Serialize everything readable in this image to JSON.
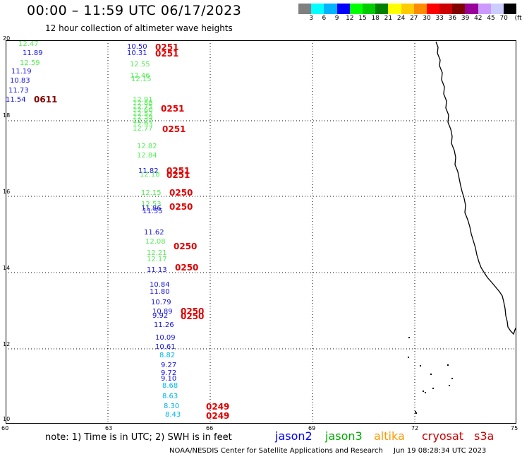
{
  "header": {
    "title": "00:00 – 11:59 UTC 06/17/2023",
    "subtitle": "12 hour collection of altimeter wave heights"
  },
  "legend": {
    "colors": [
      "#808080",
      "#00ffff",
      "#00b4ff",
      "#0000ff",
      "#00ff00",
      "#00cc00",
      "#008000",
      "#ffff00",
      "#ffcc00",
      "#ff8c00",
      "#ff0000",
      "#cc0000",
      "#800000",
      "#990099",
      "#cc99ff",
      "#ccccff",
      "#000000"
    ],
    "labels": [
      "3",
      "6",
      "9",
      "12",
      "15",
      "18",
      "21",
      "24",
      "27",
      "30",
      "33",
      "36",
      "39",
      "42",
      "45",
      "70",
      "(ft)"
    ]
  },
  "axes": {
    "y_labels": [
      "20",
      "18",
      "16",
      "14",
      "12",
      "10"
    ],
    "x_labels": [
      "60",
      "63",
      "66",
      "69",
      "72",
      "75"
    ]
  },
  "satellites": {
    "jason2": {
      "label": "jason2",
      "color": "#0000ff"
    },
    "jason3": {
      "label": "jason3",
      "color": "#00aa00"
    },
    "altika": {
      "label": "altika",
      "color": "#ff9900"
    },
    "cryosat": {
      "label": "cryosat",
      "color": "#cc0000"
    },
    "s3a": {
      "label": "s3a",
      "color": "#cc0000"
    }
  },
  "points": [
    {
      "v": "12.47",
      "c": "#55ee55"
    },
    {
      "v": "11.89",
      "c": "#1515e0"
    },
    {
      "v": "12.59",
      "c": "#55ee55"
    },
    {
      "v": "11.19",
      "c": "#1515e0"
    },
    {
      "v": "10.83",
      "c": "#1515e0"
    },
    {
      "v": "11.73",
      "c": "#1515e0"
    },
    {
      "v": "11.54",
      "c": "#1515e0"
    },
    {
      "v": "10.50",
      "c": "#1515e0"
    },
    {
      "v": "10.31",
      "c": "#1515e0"
    },
    {
      "v": "12.55",
      "c": "#55ee55"
    },
    {
      "v": "12.46",
      "c": "#55ee55"
    },
    {
      "v": "12.15",
      "c": "#55ee55"
    },
    {
      "v": "12.91",
      "c": "#55ee55"
    },
    {
      "v": "12.88",
      "c": "#55ee55"
    },
    {
      "v": "12.75",
      "c": "#55ee55"
    },
    {
      "v": "12.60",
      "c": "#55ee55"
    },
    {
      "v": "12.52",
      "c": "#55ee55"
    },
    {
      "v": "12.39",
      "c": "#55ee55"
    },
    {
      "v": "12.27",
      "c": "#55ee55"
    },
    {
      "v": "12.93",
      "c": "#55ee55"
    },
    {
      "v": "12.77",
      "c": "#55ee55"
    },
    {
      "v": "12.82",
      "c": "#55ee55"
    },
    {
      "v": "12.84",
      "c": "#55ee55"
    },
    {
      "v": "11.82",
      "c": "#1515e0"
    },
    {
      "v": "12.18",
      "c": "#55ee55"
    },
    {
      "v": "12.15",
      "c": "#55ee55"
    },
    {
      "v": "12.53",
      "c": "#55ee55"
    },
    {
      "v": "11.86",
      "c": "#1515e0"
    },
    {
      "v": "11.55",
      "c": "#1515e0"
    },
    {
      "v": "11.62",
      "c": "#1515e0"
    },
    {
      "v": "12.08",
      "c": "#55ee55"
    },
    {
      "v": "12.21",
      "c": "#55ee55"
    },
    {
      "v": "12.17",
      "c": "#55ee55"
    },
    {
      "v": "11.13",
      "c": "#1515e0"
    },
    {
      "v": "10.84",
      "c": "#1515e0"
    },
    {
      "v": "11.80",
      "c": "#1515e0"
    },
    {
      "v": "10.79",
      "c": "#1515e0"
    },
    {
      "v": "10.89",
      "c": "#1515e0"
    },
    {
      "v": "9.92",
      "c": "#1515e0"
    },
    {
      "v": "11.26",
      "c": "#1515e0"
    },
    {
      "v": "10.09",
      "c": "#1515e0"
    },
    {
      "v": "10.61",
      "c": "#1515e0"
    },
    {
      "v": "8.82",
      "c": "#00b4e6"
    },
    {
      "v": "9.27",
      "c": "#1515e0"
    },
    {
      "v": "9.72",
      "c": "#1515e0"
    },
    {
      "v": "9.10",
      "c": "#1515e0"
    },
    {
      "v": "8.68",
      "c": "#00b4e6"
    },
    {
      "v": "8.63",
      "c": "#00b4e6"
    },
    {
      "v": "8.30",
      "c": "#00b4e6"
    },
    {
      "v": "8.43",
      "c": "#00b4e6"
    }
  ],
  "revs": [
    {
      "v": "0611",
      "c": "#800000"
    },
    {
      "v": "0251",
      "c": "#e00000"
    },
    {
      "v": "0251",
      "c": "#e00000"
    },
    {
      "v": "0251",
      "c": "#e00000"
    },
    {
      "v": "0251",
      "c": "#e00000"
    },
    {
      "v": "0251",
      "c": "#e00000"
    },
    {
      "v": "0251",
      "c": "#e00000"
    },
    {
      "v": "0250",
      "c": "#e00000"
    },
    {
      "v": "0250",
      "c": "#e00000"
    },
    {
      "v": "0250",
      "c": "#e00000"
    },
    {
      "v": "0250",
      "c": "#e00000"
    },
    {
      "v": "0250",
      "c": "#e00000"
    },
    {
      "v": "0250",
      "c": "#e00000"
    },
    {
      "v": "0249",
      "c": "#e00000"
    },
    {
      "v": "0249",
      "c": "#e00000"
    }
  ],
  "footer": {
    "note": "note:  1) Time is in UTC;  2) SWH is in feet",
    "credit": "NOAA/NESDIS Center for Satellite Applications and Research",
    "generated": "Jun 19 08:28:34 UTC 2023"
  }
}
